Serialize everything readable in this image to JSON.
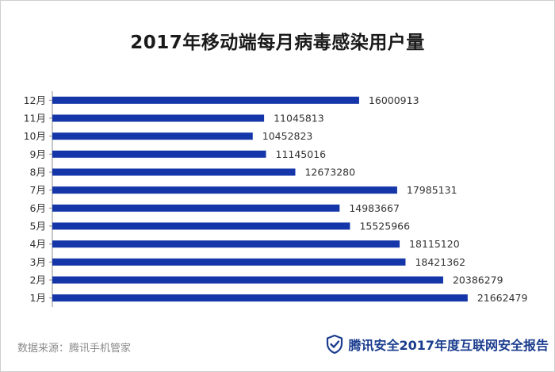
{
  "page": {
    "title": "2017年移动端每月病毒感染用户量",
    "source": "数据来源：腾讯手机管家",
    "brand": "腾讯安全2017年度互联网安全报告",
    "brand_icon": "shield-check-icon"
  },
  "colors": {
    "bar": "#1436a8",
    "axis": "#8c8c8c",
    "label": "#333333",
    "brand": "#1b3d8f"
  },
  "chart_data": {
    "type": "bar",
    "orientation": "horizontal",
    "title": "2017年移动端每月病毒感染用户量",
    "xlabel": "",
    "ylabel": "",
    "categories": [
      "12月",
      "11月",
      "10月",
      "9月",
      "8月",
      "7月",
      "6月",
      "5月",
      "4月",
      "3月",
      "2月",
      "1月"
    ],
    "values": [
      16000913,
      11045813,
      10452823,
      11145016,
      12673280,
      17985131,
      14983667,
      15525966,
      18115120,
      18421362,
      20386279,
      21662479
    ],
    "xlim": [
      0,
      22000000
    ],
    "grid": false,
    "legend": "none",
    "data_labels": true
  }
}
